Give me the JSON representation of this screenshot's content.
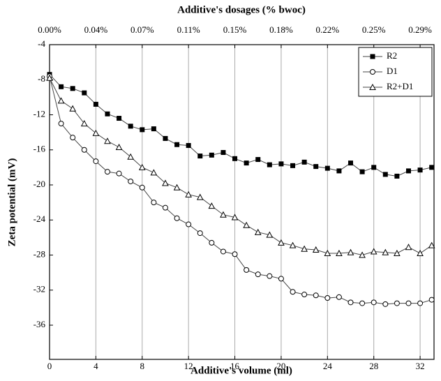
{
  "chart_data": {
    "type": "line",
    "xlabel": "Additive's volume (ml)",
    "ylabel": "Zeta potential (mV)",
    "x2label": "Additive's dosages (% bwoc)",
    "x": [
      0,
      1,
      2,
      3,
      4,
      5,
      6,
      7,
      8,
      9,
      10,
      11,
      12,
      13,
      14,
      15,
      16,
      17,
      18,
      19,
      20,
      21,
      22,
      23,
      24,
      25,
      26,
      27,
      28,
      29,
      30,
      31,
      32,
      33
    ],
    "series": [
      {
        "name": "R2",
        "color": "#000000",
        "marker": "square",
        "values": [
          -7.4,
          -8.8,
          -9.0,
          -9.5,
          -10.8,
          -11.9,
          -12.4,
          -13.3,
          -13.7,
          -13.6,
          -14.7,
          -15.4,
          -15.5,
          -16.7,
          -16.6,
          -16.3,
          -17.0,
          -17.5,
          -17.1,
          -17.7,
          -17.6,
          -17.8,
          -17.4,
          -17.9,
          -18.1,
          -18.4,
          -17.5,
          -18.5,
          -18.0,
          -18.8,
          -19.0,
          -18.4,
          -18.3,
          -18.0
        ]
      },
      {
        "name": "D1",
        "color": "#000000",
        "marker": "circle",
        "values": [
          -7.6,
          -13.0,
          -14.6,
          -16.0,
          -17.3,
          -18.5,
          -18.7,
          -19.6,
          -20.3,
          -22.0,
          -22.6,
          -23.8,
          -24.5,
          -25.5,
          -26.6,
          -27.6,
          -27.9,
          -29.7,
          -30.2,
          -30.4,
          -30.7,
          -32.2,
          -32.5,
          -32.6,
          -32.9,
          -32.8,
          -33.4,
          -33.5,
          -33.4,
          -33.6,
          -33.5,
          -33.5,
          -33.5,
          -33.1
        ]
      },
      {
        "name": "R2+D1",
        "color": "#000000",
        "marker": "triangle",
        "values": [
          -7.8,
          -10.4,
          -11.3,
          -13.0,
          -14.1,
          -15.0,
          -15.7,
          -16.8,
          -18.0,
          -18.6,
          -19.8,
          -20.3,
          -21.1,
          -21.4,
          -22.4,
          -23.4,
          -23.7,
          -24.6,
          -25.4,
          -25.7,
          -26.6,
          -26.9,
          -27.3,
          -27.4,
          -27.8,
          -27.8,
          -27.7,
          -28.0,
          -27.6,
          -27.7,
          -27.8,
          -27.1,
          -27.8,
          -26.9
        ]
      }
    ],
    "xlim": [
      0,
      33.2
    ],
    "xticks": [
      0,
      4,
      8,
      12,
      16,
      20,
      24,
      28,
      32
    ],
    "x2lim": [
      0,
      0.300875
    ],
    "x2ticks": [
      {
        "value": 0,
        "label": "0.00%"
      },
      {
        "value": 0.03625,
        "label": "0.04%"
      },
      {
        "value": 0.0725,
        "label": "0.07%"
      },
      {
        "value": 0.10875,
        "label": "0.11%"
      },
      {
        "value": 0.145,
        "label": "0.15%"
      },
      {
        "value": 0.18125,
        "label": "0.18%"
      },
      {
        "value": 0.2175,
        "label": "0.22%"
      },
      {
        "value": 0.25375,
        "label": "0.25%"
      },
      {
        "value": 0.29,
        "label": "0.29%"
      }
    ],
    "ylim": [
      -39.9,
      -4
    ],
    "yticks": [
      -4,
      -8,
      -12,
      -16,
      -20,
      -24,
      -28,
      -32,
      -36
    ],
    "grid": "x",
    "legend": "top-right"
  }
}
